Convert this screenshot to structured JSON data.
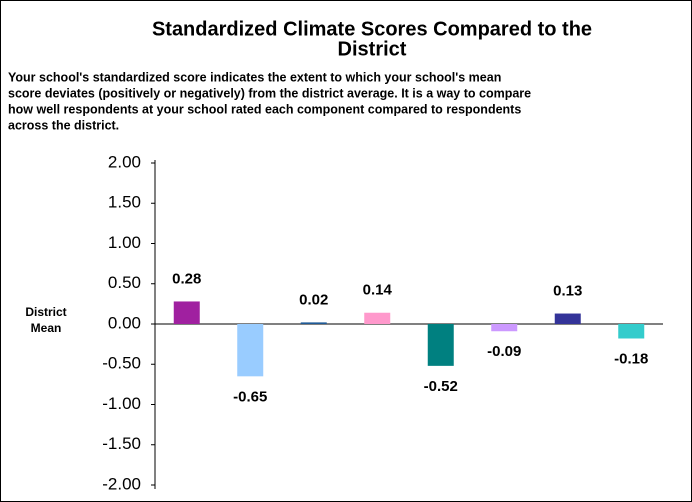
{
  "chart_data": {
    "type": "bar",
    "title": [
      "Standardized Climate Scores Compared to the",
      "District"
    ],
    "subtitle": [
      "Your school's standardized score indicates the extent to which your school's mean",
      "score deviates (positively or negatively) from the district average. It is a way to compare",
      "how well respondents at your school rated each component compared to respondents",
      "across the district."
    ],
    "annotation": [
      "District",
      "Mean"
    ],
    "categories": [
      null,
      null,
      null,
      null,
      null,
      null,
      null,
      null
    ],
    "values": [
      0.28,
      -0.65,
      0.02,
      0.14,
      -0.52,
      -0.09,
      0.13,
      -0.18
    ],
    "colors": [
      "#a020a0",
      "#99ccff",
      "#1f5a96",
      "#ff99cc",
      "#008080",
      "#cc99ff",
      "#333399",
      "#33cccc"
    ],
    "ylim": [
      -2,
      2
    ],
    "yticks": [
      {
        "value": 2,
        "label": "2.00"
      },
      {
        "value": 1.5,
        "label": "1.50"
      },
      {
        "value": 1,
        "label": "1.00"
      },
      {
        "value": 0.5,
        "label": "0.50"
      },
      {
        "value": 0,
        "label": "0.00"
      },
      {
        "value": -0.5,
        "label": "-0.50"
      },
      {
        "value": -1,
        "label": "-1.00"
      },
      {
        "value": -1.5,
        "label": "-1.50"
      },
      {
        "value": -2,
        "label": "-2.00"
      }
    ],
    "grid": false
  }
}
